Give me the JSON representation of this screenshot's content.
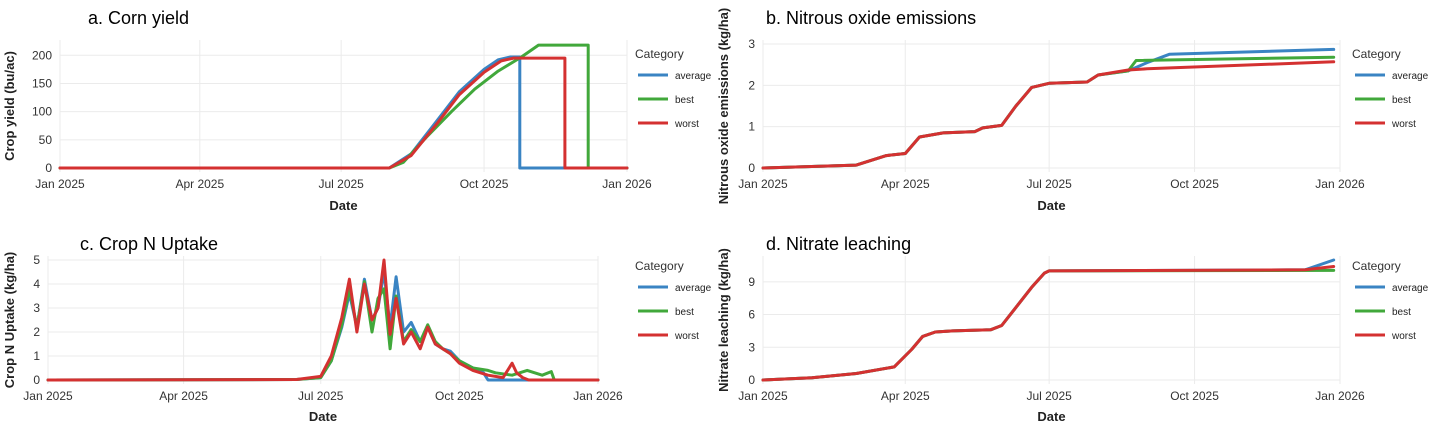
{
  "legend_title": "Category",
  "colors": {
    "average": "#3a84c3",
    "best": "#41a83b",
    "worst": "#d43131"
  },
  "x_axis_label": "Date",
  "chart_data": [
    {
      "type": "line",
      "title": "a. Corn yield",
      "xlabel": "Date",
      "ylabel": "Crop yield (bu/ac)",
      "xlim": [
        "2025-01-01",
        "2026-01-01"
      ],
      "x_ticks": [
        "Jan 2025",
        "Apr 2025",
        "Jul 2025",
        "Oct 2025",
        "Jan 2026"
      ],
      "ylim": [
        0,
        220
      ],
      "y_ticks": [
        0,
        50,
        100,
        150,
        200
      ],
      "legend": [
        "average",
        "best",
        "worst"
      ],
      "series": [
        {
          "name": "average",
          "x": [
            "2025-01-01",
            "2025-08-01",
            "2025-08-15",
            "2025-09-01",
            "2025-09-15",
            "2025-10-01",
            "2025-10-10",
            "2025-10-18",
            "2025-10-22",
            "2025-10-24",
            "2025-10-24",
            "2026-01-01"
          ],
          "y": [
            0,
            0,
            25,
            85,
            135,
            175,
            192,
            197,
            197,
            197,
            0,
            0
          ]
        },
        {
          "name": "best",
          "x": [
            "2025-01-01",
            "2025-08-01",
            "2025-08-10",
            "2025-08-25",
            "2025-09-10",
            "2025-09-25",
            "2025-10-10",
            "2025-10-25",
            "2025-11-05",
            "2025-12-01",
            "2025-12-07",
            "2025-12-07",
            "2026-01-01"
          ],
          "y": [
            0,
            0,
            10,
            55,
            100,
            140,
            172,
            197,
            218,
            218,
            218,
            0,
            0
          ]
        },
        {
          "name": "worst",
          "x": [
            "2025-01-01",
            "2025-08-01",
            "2025-08-15",
            "2025-09-01",
            "2025-09-15",
            "2025-10-01",
            "2025-10-12",
            "2025-10-20",
            "2025-11-22",
            "2025-11-22",
            "2026-01-01"
          ],
          "y": [
            0,
            0,
            22,
            80,
            130,
            170,
            190,
            195,
            195,
            0,
            0
          ]
        }
      ]
    },
    {
      "type": "line",
      "title": "b. Nitrous oxide emissions",
      "xlabel": "Date",
      "ylabel": "Nitrous oxide emissions (kg/ha)",
      "xlim": [
        "2025-01-01",
        "2026-01-01"
      ],
      "x_ticks": [
        "Jan 2025",
        "Apr 2025",
        "Jul 2025",
        "Oct 2025",
        "Jan 2026"
      ],
      "ylim": [
        0,
        3
      ],
      "y_ticks": [
        0,
        1,
        2,
        3
      ],
      "legend": [
        "average",
        "best",
        "worst"
      ],
      "series": [
        {
          "name": "average",
          "x": [
            "2025-01-01",
            "2025-03-01",
            "2025-03-20",
            "2025-04-01",
            "2025-04-10",
            "2025-04-25",
            "2025-05-15",
            "2025-05-20",
            "2025-06-01",
            "2025-06-10",
            "2025-06-20",
            "2025-07-01",
            "2025-07-25",
            "2025-08-01",
            "2025-08-20",
            "2025-09-01",
            "2025-09-15",
            "2025-12-28"
          ],
          "y": [
            0,
            0.07,
            0.3,
            0.35,
            0.75,
            0.85,
            0.88,
            0.97,
            1.03,
            1.5,
            1.95,
            2.05,
            2.08,
            2.25,
            2.35,
            2.55,
            2.75,
            2.87
          ]
        },
        {
          "name": "best",
          "x": [
            "2025-01-01",
            "2025-03-01",
            "2025-03-20",
            "2025-04-01",
            "2025-04-10",
            "2025-04-25",
            "2025-05-15",
            "2025-05-20",
            "2025-06-01",
            "2025-06-10",
            "2025-06-20",
            "2025-07-01",
            "2025-07-25",
            "2025-08-01",
            "2025-08-20",
            "2025-08-25",
            "2025-12-28"
          ],
          "y": [
            0,
            0.07,
            0.3,
            0.35,
            0.75,
            0.85,
            0.88,
            0.97,
            1.03,
            1.5,
            1.95,
            2.05,
            2.08,
            2.25,
            2.35,
            2.6,
            2.68
          ]
        },
        {
          "name": "worst",
          "x": [
            "2025-01-01",
            "2025-03-01",
            "2025-03-20",
            "2025-04-01",
            "2025-04-10",
            "2025-04-25",
            "2025-05-15",
            "2025-05-20",
            "2025-06-01",
            "2025-06-10",
            "2025-06-20",
            "2025-07-01",
            "2025-07-25",
            "2025-08-01",
            "2025-08-20",
            "2025-09-01",
            "2025-12-28"
          ],
          "y": [
            0,
            0.07,
            0.3,
            0.35,
            0.75,
            0.85,
            0.88,
            0.97,
            1.03,
            1.5,
            1.95,
            2.05,
            2.08,
            2.25,
            2.37,
            2.4,
            2.57
          ]
        }
      ]
    },
    {
      "type": "line",
      "title": "c. Crop N Uptake",
      "xlabel": "Date",
      "ylabel": "Crop N Uptake (kg/ha)",
      "xlim": [
        "2025-01-01",
        "2026-01-01"
      ],
      "x_ticks": [
        "Jan 2025",
        "Apr 2025",
        "Jul 2025",
        "Oct 2025",
        "Jan 2026"
      ],
      "ylim": [
        0,
        5
      ],
      "y_ticks": [
        0,
        1,
        2,
        3,
        4,
        5
      ],
      "legend": [
        "average",
        "best",
        "worst"
      ],
      "series": [
        {
          "name": "average",
          "x": [
            "2025-01-01",
            "2025-06-15",
            "2025-07-01",
            "2025-07-08",
            "2025-07-15",
            "2025-07-20",
            "2025-07-25",
            "2025-07-30",
            "2025-08-04",
            "2025-08-08",
            "2025-08-12",
            "2025-08-16",
            "2025-08-20",
            "2025-08-25",
            "2025-08-30",
            "2025-09-05",
            "2025-09-10",
            "2025-09-15",
            "2025-09-20",
            "2025-09-25",
            "2025-10-01",
            "2025-10-10",
            "2025-10-17",
            "2025-10-20",
            "2026-01-01"
          ],
          "y": [
            0,
            0.02,
            0.1,
            0.8,
            2.2,
            3.6,
            2.2,
            4.2,
            2.5,
            3.0,
            4.5,
            2.2,
            4.3,
            2.0,
            2.4,
            1.6,
            2.2,
            1.5,
            1.3,
            1.2,
            0.8,
            0.5,
            0.3,
            0,
            0
          ]
        },
        {
          "name": "best",
          "x": [
            "2025-01-01",
            "2025-06-15",
            "2025-07-01",
            "2025-07-08",
            "2025-07-15",
            "2025-07-20",
            "2025-07-25",
            "2025-07-30",
            "2025-08-04",
            "2025-08-08",
            "2025-08-12",
            "2025-08-16",
            "2025-08-20",
            "2025-08-25",
            "2025-08-30",
            "2025-09-05",
            "2025-09-10",
            "2025-09-15",
            "2025-09-20",
            "2025-09-25",
            "2025-10-01",
            "2025-10-10",
            "2025-10-20",
            "2025-10-25",
            "2025-11-05",
            "2025-11-15",
            "2025-11-25",
            "2025-12-01",
            "2025-12-03",
            "2026-01-01"
          ],
          "y": [
            0,
            0.02,
            0.1,
            0.8,
            2.3,
            3.8,
            2.2,
            4.1,
            2.0,
            3.4,
            3.8,
            1.3,
            3.5,
            1.6,
            2.1,
            1.6,
            2.3,
            1.6,
            1.3,
            1.1,
            0.8,
            0.5,
            0.4,
            0.3,
            0.2,
            0.4,
            0.2,
            0.35,
            0,
            0
          ]
        },
        {
          "name": "worst",
          "x": [
            "2025-01-01",
            "2025-06-15",
            "2025-07-01",
            "2025-07-08",
            "2025-07-15",
            "2025-07-20",
            "2025-07-25",
            "2025-07-30",
            "2025-08-04",
            "2025-08-08",
            "2025-08-12",
            "2025-08-16",
            "2025-08-20",
            "2025-08-25",
            "2025-08-30",
            "2025-09-05",
            "2025-09-10",
            "2025-09-15",
            "2025-09-20",
            "2025-09-25",
            "2025-10-01",
            "2025-10-10",
            "2025-10-20",
            "2025-10-30",
            "2025-11-05",
            "2025-11-08",
            "2025-11-12",
            "2025-11-16",
            "2026-01-01"
          ],
          "y": [
            0,
            0.02,
            0.15,
            1.0,
            2.6,
            4.2,
            2.0,
            4.0,
            2.5,
            3.0,
            5.0,
            1.9,
            3.4,
            1.5,
            2.0,
            1.3,
            2.2,
            1.5,
            1.3,
            1.1,
            0.7,
            0.4,
            0.2,
            0.1,
            0.7,
            0.3,
            0.1,
            0,
            0
          ]
        }
      ]
    },
    {
      "type": "line",
      "title": "d. Nitrate leaching",
      "xlabel": "Date",
      "ylabel": "Nitrate leaching (kg/ha)",
      "xlim": [
        "2025-01-01",
        "2026-01-01"
      ],
      "x_ticks": [
        "Jan 2025",
        "Apr 2025",
        "Jul 2025",
        "Oct 2025",
        "Jan 2026"
      ],
      "ylim": [
        0,
        11
      ],
      "y_ticks": [
        0,
        3,
        6,
        9
      ],
      "legend": [
        "average",
        "best",
        "worst"
      ],
      "series": [
        {
          "name": "average",
          "x": [
            "2025-01-01",
            "2025-02-01",
            "2025-03-01",
            "2025-03-25",
            "2025-04-05",
            "2025-04-12",
            "2025-04-20",
            "2025-05-01",
            "2025-05-25",
            "2025-06-01",
            "2025-06-20",
            "2025-06-28",
            "2025-07-01",
            "2025-12-10",
            "2025-12-28"
          ],
          "y": [
            0,
            0.2,
            0.6,
            1.2,
            2.8,
            4.0,
            4.4,
            4.5,
            4.6,
            5.0,
            8.5,
            9.8,
            10.0,
            10.1,
            11.0
          ]
        },
        {
          "name": "best",
          "x": [
            "2025-01-01",
            "2025-02-01",
            "2025-03-01",
            "2025-03-25",
            "2025-04-05",
            "2025-04-12",
            "2025-04-20",
            "2025-05-01",
            "2025-05-25",
            "2025-06-01",
            "2025-06-20",
            "2025-06-28",
            "2025-07-01",
            "2025-12-28"
          ],
          "y": [
            0,
            0.2,
            0.6,
            1.2,
            2.8,
            4.0,
            4.4,
            4.5,
            4.6,
            5.0,
            8.5,
            9.8,
            10.0,
            10.05
          ]
        },
        {
          "name": "worst",
          "x": [
            "2025-01-01",
            "2025-02-01",
            "2025-03-01",
            "2025-03-25",
            "2025-04-05",
            "2025-04-12",
            "2025-04-20",
            "2025-05-01",
            "2025-05-25",
            "2025-06-01",
            "2025-06-20",
            "2025-06-28",
            "2025-07-01",
            "2025-12-10",
            "2025-12-28"
          ],
          "y": [
            0,
            0.2,
            0.6,
            1.2,
            2.8,
            4.0,
            4.4,
            4.5,
            4.6,
            5.0,
            8.5,
            9.8,
            10.0,
            10.1,
            10.4
          ]
        }
      ]
    }
  ]
}
